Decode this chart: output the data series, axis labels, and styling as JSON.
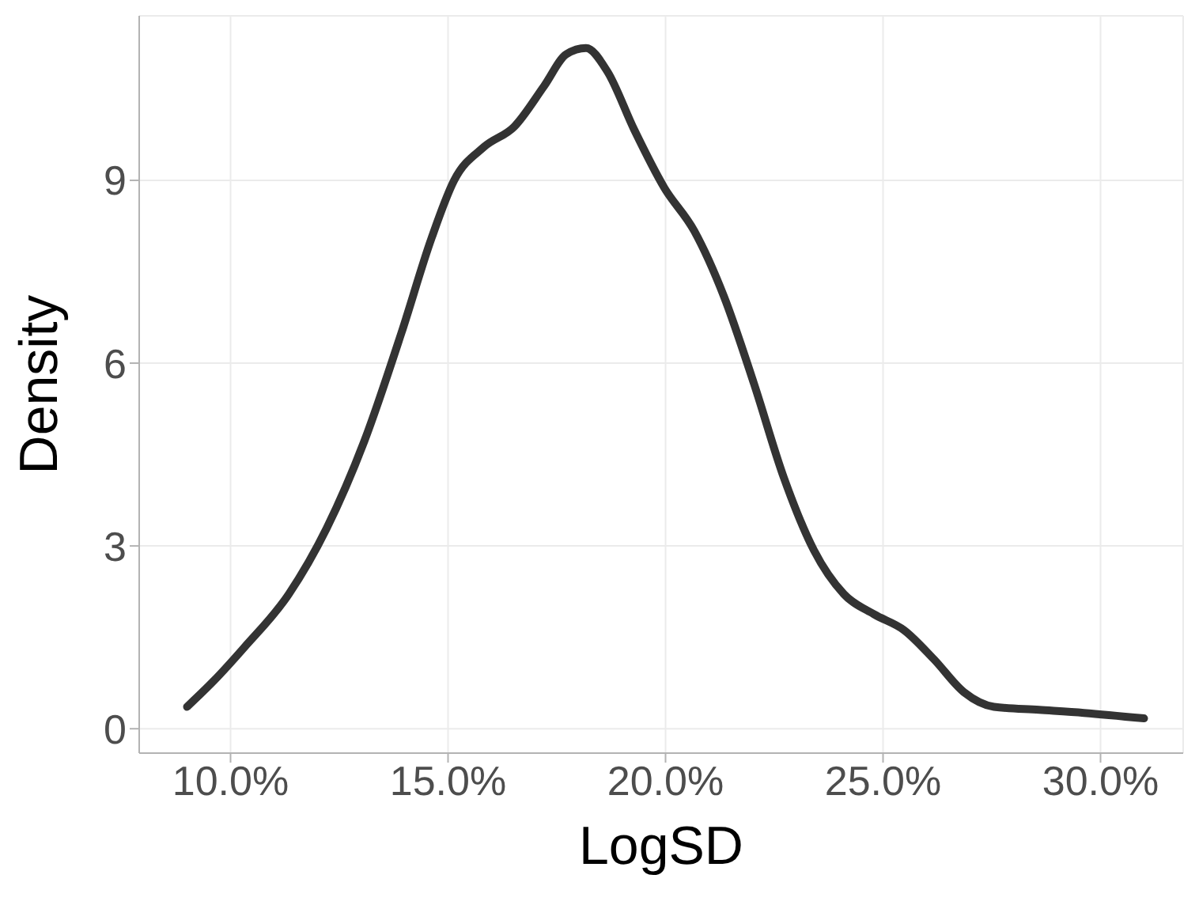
{
  "chart_data": {
    "type": "line",
    "xlabel": "LogSD",
    "ylabel": "Density",
    "grid": true,
    "marker": "none",
    "line_style": "solid",
    "xlim": [
      7.9,
      31.9
    ],
    "ylim": [
      -0.4,
      11.7
    ],
    "xticks": [
      {
        "value": 10,
        "label": "10.0%"
      },
      {
        "value": 15,
        "label": "15.0%"
      },
      {
        "value": 20,
        "label": "20.0%"
      },
      {
        "value": 25,
        "label": "25.0%"
      },
      {
        "value": 30,
        "label": "30.0%"
      }
    ],
    "yticks": [
      0,
      3,
      6,
      9
    ],
    "series": [
      {
        "color": "#333333",
        "x": [
          9.0,
          9.62,
          10.31,
          11.34,
          12.21,
          13.07,
          13.93,
          14.62,
          15.14,
          15.83,
          16.52,
          17.21,
          17.72,
          18.17,
          18.66,
          19.28,
          19.97,
          20.66,
          21.34,
          22.03,
          22.72,
          23.41,
          24.1,
          24.79,
          25.48,
          26.17,
          26.86,
          27.55,
          28.59,
          29.62,
          31.0
        ],
        "values": [
          0.36,
          0.79,
          1.33,
          2.21,
          3.29,
          4.71,
          6.5,
          8.05,
          9.0,
          9.55,
          9.88,
          10.55,
          11.07,
          11.17,
          10.79,
          9.83,
          8.88,
          8.17,
          7.1,
          5.67,
          4.12,
          2.93,
          2.21,
          1.88,
          1.62,
          1.14,
          0.6,
          0.36,
          0.31,
          0.26,
          0.17
        ]
      }
    ]
  }
}
